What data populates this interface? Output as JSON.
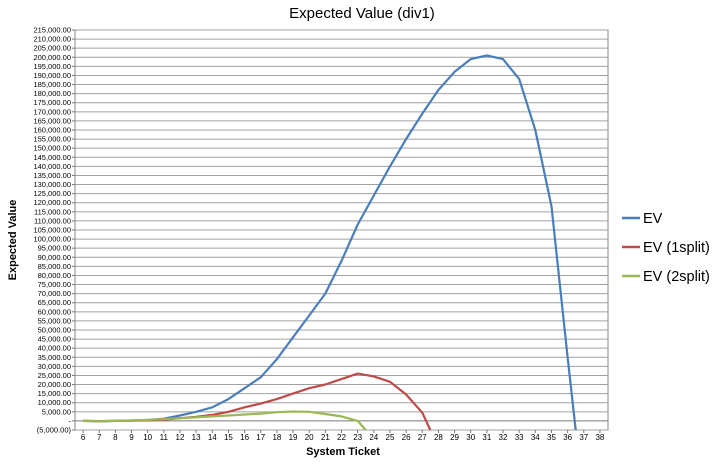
{
  "chart_data": {
    "type": "line",
    "title": "Expected Value (div1)",
    "xlabel": "System Ticket",
    "ylabel": "Expected Value",
    "x": [
      6,
      7,
      8,
      9,
      10,
      11,
      12,
      13,
      14,
      15,
      16,
      17,
      18,
      19,
      20,
      21,
      22,
      23,
      24,
      25,
      26,
      27,
      28,
      29,
      30,
      31,
      32,
      33,
      34,
      35,
      36,
      37,
      38
    ],
    "ylim": [
      -5000,
      215000
    ],
    "ytick_step": 5000,
    "ytick_labels": [
      "(5,000.00)",
      "-",
      "5,000.00",
      "10,000.00",
      "15,000.00",
      "20,000.00",
      "25,000.00",
      "30,000.00",
      "35,000.00",
      "40,000.00",
      "45,000.00",
      "50,000.00",
      "55,000.00",
      "60,000.00",
      "65,000.00",
      "70,000.00",
      "75,000.00",
      "80,000.00",
      "85,000.00",
      "90,000.00",
      "95,000.00",
      "100,000.00",
      "105,000.00",
      "110,000.00",
      "115,000.00",
      "120,000.00",
      "125,000.00",
      "130,000.00",
      "135,000.00",
      "140,000.00",
      "145,000.00",
      "150,000.00",
      "155,000.00",
      "160,000.00",
      "165,000.00",
      "170,000.00",
      "175,000.00",
      "180,000.00",
      "185,000.00",
      "190,000.00",
      "195,000.00",
      "200,000.00",
      "205,000.00",
      "210,000.00",
      "215,000.00"
    ],
    "grid": true,
    "legend_position": "right",
    "series": [
      {
        "name": "EV",
        "color": "#4a7ebb",
        "points": [
          [
            6,
            0
          ],
          [
            7,
            -200
          ],
          [
            8,
            0
          ],
          [
            9,
            200
          ],
          [
            10,
            500
          ],
          [
            11,
            1200
          ],
          [
            12,
            3000
          ],
          [
            13,
            5000
          ],
          [
            14,
            7500
          ],
          [
            15,
            12000
          ],
          [
            16,
            18000
          ],
          [
            17,
            24000
          ],
          [
            18,
            34000
          ],
          [
            19,
            46000
          ],
          [
            20,
            58000
          ],
          [
            21,
            70000
          ],
          [
            22,
            88000
          ],
          [
            23,
            108000
          ],
          [
            24,
            124000
          ],
          [
            25,
            140000
          ],
          [
            26,
            155000
          ],
          [
            27,
            169000
          ],
          [
            28,
            182000
          ],
          [
            29,
            192000
          ],
          [
            30,
            199000
          ],
          [
            31,
            201000
          ],
          [
            32,
            199000
          ],
          [
            33,
            188000
          ],
          [
            34,
            160000
          ],
          [
            35,
            118000
          ],
          [
            36,
            35000
          ],
          [
            36.5,
            -5000
          ]
        ]
      },
      {
        "name": "EV (1split)",
        "color": "#be4b48",
        "points": [
          [
            6,
            0
          ],
          [
            7,
            -100
          ],
          [
            8,
            0
          ],
          [
            9,
            100
          ],
          [
            10,
            300
          ],
          [
            11,
            700
          ],
          [
            12,
            1500
          ],
          [
            13,
            2200
          ],
          [
            14,
            3300
          ],
          [
            15,
            5000
          ],
          [
            16,
            7500
          ],
          [
            17,
            9500
          ],
          [
            18,
            12000
          ],
          [
            19,
            15000
          ],
          [
            20,
            18000
          ],
          [
            21,
            20000
          ],
          [
            22,
            23000
          ],
          [
            23,
            26000
          ],
          [
            24,
            24500
          ],
          [
            25,
            21500
          ],
          [
            26,
            14500
          ],
          [
            27,
            4500
          ],
          [
            27.5,
            -5000
          ]
        ]
      },
      {
        "name": "EV (2split)",
        "color": "#98b954",
        "points": [
          [
            6,
            0
          ],
          [
            7,
            -200
          ],
          [
            8,
            0
          ],
          [
            9,
            300
          ],
          [
            10,
            600
          ],
          [
            11,
            1000
          ],
          [
            12,
            1500
          ],
          [
            13,
            2000
          ],
          [
            14,
            2500
          ],
          [
            15,
            3000
          ],
          [
            16,
            3500
          ],
          [
            17,
            4000
          ],
          [
            18,
            4800
          ],
          [
            19,
            5200
          ],
          [
            20,
            5000
          ],
          [
            21,
            3800
          ],
          [
            22,
            2500
          ],
          [
            23,
            0
          ],
          [
            23.5,
            -5000
          ]
        ]
      }
    ]
  }
}
